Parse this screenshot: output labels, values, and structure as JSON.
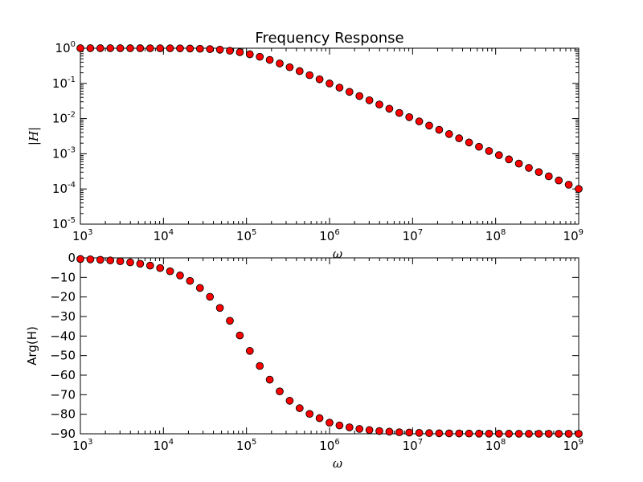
{
  "figure": {
    "title": "Frequency Response"
  },
  "chart_data": [
    {
      "type": "scatter",
      "title": "Frequency Response",
      "xlabel": "ω",
      "ylabel": "|H|",
      "xscale": "log",
      "yscale": "log",
      "xlim": [
        1000,
        1000000000
      ],
      "ylim": [
        1e-05,
        1
      ],
      "x_tick_labels": [
        {
          "base": "10",
          "exp": "3"
        },
        {
          "base": "10",
          "exp": "4"
        },
        {
          "base": "10",
          "exp": "5"
        },
        {
          "base": "10",
          "exp": "6"
        },
        {
          "base": "10",
          "exp": "7"
        },
        {
          "base": "10",
          "exp": "8"
        },
        {
          "base": "10",
          "exp": "9"
        }
      ],
      "y_tick_labels": [
        {
          "base": "10",
          "exp": "0"
        },
        {
          "base": "10",
          "exp": "-1"
        },
        {
          "base": "10",
          "exp": "-2"
        },
        {
          "base": "10",
          "exp": "-3"
        },
        {
          "base": "10",
          "exp": "-4"
        },
        {
          "base": "10",
          "exp": "-5"
        }
      ],
      "marker": {
        "color": "#ff0000",
        "edge": "#000000"
      },
      "x": [
        1000,
        1318.3,
        1737.8,
        2290.9,
        3019.95,
        3981.07,
        5248.07,
        6918.31,
        9120.11,
        12022.6,
        15848.9,
        20893,
        27542.3,
        36307.8,
        47863,
        63095.7,
        83176.4,
        109648,
        144544,
        190546,
        251189,
        331131,
        436516,
        575440,
        758578,
        1000000,
        1318260,
        1737800,
        2290870,
        3019950,
        3981070,
        5248070,
        6918310,
        9120110,
        12022600,
        15848900,
        20893000,
        27542300,
        36307800,
        47863000,
        63095700,
        83176400,
        109648000,
        144544000,
        190546000,
        251189000,
        331131000,
        436516000,
        575440000,
        758578000,
        1000000000
      ],
      "y": [
        0.99995,
        0.99991,
        0.99985,
        0.99974,
        0.99954,
        0.99921,
        0.99863,
        0.99763,
        0.9959,
        0.99295,
        0.98788,
        0.97932,
        0.96513,
        0.94242,
        0.90768,
        0.84574,
        0.76888,
        0.67392,
        0.56939,
        0.46443,
        0.36878,
        0.2879,
        0.22317,
        0.17125,
        0.13063,
        0.0995,
        0.07566,
        0.05746,
        0.04361,
        0.0331,
        0.02511,
        0.01905,
        0.01445,
        0.01096,
        0.00831,
        0.00631,
        0.00479,
        0.00363,
        0.00275,
        0.00209,
        0.00158,
        0.0012,
        0.000912,
        0.000692,
        0.000525,
        0.000398,
        0.000302,
        0.000229,
        0.000174,
        0.000132,
        0.0001
      ]
    },
    {
      "type": "scatter",
      "title": "",
      "xlabel": "ω",
      "ylabel": "Arg(H)",
      "xscale": "log",
      "yscale": "linear",
      "xlim": [
        1000,
        1000000000
      ],
      "ylim": [
        -90,
        0
      ],
      "x_tick_labels": [
        {
          "base": "10",
          "exp": "3"
        },
        {
          "base": "10",
          "exp": "4"
        },
        {
          "base": "10",
          "exp": "5"
        },
        {
          "base": "10",
          "exp": "6"
        },
        {
          "base": "10",
          "exp": "7"
        },
        {
          "base": "10",
          "exp": "8"
        },
        {
          "base": "10",
          "exp": "9"
        }
      ],
      "y_ticks": [
        0,
        -10,
        -20,
        -30,
        -40,
        -50,
        -60,
        -70,
        -80,
        -90
      ],
      "y_tick_labels": [
        "0",
        "−10",
        "−20",
        "−30",
        "−40",
        "−50",
        "−60",
        "−70",
        "−80",
        "−90"
      ],
      "marker": {
        "color": "#ff0000",
        "edge": "#000000"
      },
      "x": [
        1000,
        1318.3,
        1737.8,
        2290.9,
        3019.95,
        3981.07,
        5248.07,
        6918.31,
        9120.11,
        12022.6,
        15848.9,
        20893,
        27542.3,
        36307.8,
        47863,
        63095.7,
        83176.4,
        109648,
        144544,
        190546,
        251189,
        331131,
        436516,
        575440,
        758578,
        1000000,
        1318260,
        1737800,
        2290870,
        3019950,
        3981070,
        5248070,
        6918310,
        9120110,
        12022600,
        15848900,
        20893000,
        27542300,
        36307800,
        47863000,
        63095700,
        83176400,
        109648000,
        144544000,
        190546000,
        251189000,
        331131000,
        436516000,
        575440000,
        758578000,
        1000000000
      ],
      "y": [
        -0.57,
        -0.76,
        -1.0,
        -1.31,
        -1.73,
        -2.28,
        -3.0,
        -3.96,
        -5.21,
        -6.86,
        -9.0,
        -11.8,
        -15.4,
        -19.9,
        -25.6,
        -32.2,
        -39.7,
        -47.6,
        -55.3,
        -62.3,
        -68.3,
        -73.1,
        -76.9,
        -79.8,
        -82.0,
        -84.3,
        -85.7,
        -86.7,
        -87.5,
        -88.1,
        -88.6,
        -88.9,
        -89.2,
        -89.37,
        -89.52,
        -89.64,
        -89.73,
        -89.79,
        -89.84,
        -89.88,
        -89.91,
        -89.93,
        -89.95,
        -89.96,
        -89.97,
        -89.98,
        -89.98,
        -89.99,
        -89.99,
        -89.99,
        -89.99
      ]
    }
  ]
}
